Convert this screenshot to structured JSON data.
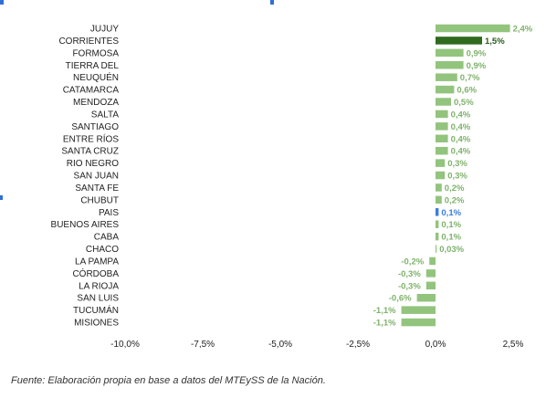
{
  "chart_data": {
    "type": "bar",
    "orientation": "horizontal",
    "categories": [
      "JUJUY",
      "CORRIENTES",
      "FORMOSA",
      "TIERRA DEL",
      "NEUQUÉN",
      "CATAMARCA",
      "MENDOZA",
      "SALTA",
      "SANTIAGO",
      "ENTRE RÍOS",
      "SANTA CRUZ",
      "RIO NEGRO",
      "SAN JUAN",
      "SANTA FE",
      "CHUBUT",
      "PAIS",
      "BUENOS AIRES",
      "CABA",
      "CHACO",
      "LA PAMPA",
      "CÓRDOBA",
      "LA RIOJA",
      "SAN LUIS",
      "TUCUMÁN",
      "MISIONES"
    ],
    "values": [
      2.4,
      1.5,
      0.9,
      0.9,
      0.7,
      0.6,
      0.5,
      0.4,
      0.4,
      0.4,
      0.4,
      0.3,
      0.3,
      0.2,
      0.2,
      0.1,
      0.1,
      0.1,
      0.03,
      -0.2,
      -0.3,
      -0.3,
      -0.6,
      -1.1,
      -1.1
    ],
    "value_labels": [
      "2,4%",
      "1,5%",
      "0,9%",
      "0,9%",
      "0,7%",
      "0,6%",
      "0,5%",
      "0,4%",
      "0,4%",
      "0,4%",
      "0,4%",
      "0,3%",
      "0,3%",
      "0,2%",
      "0,2%",
      "0,1%",
      "0,1%",
      "0,1%",
      "0,03%",
      "-0,2%",
      "-0,3%",
      "-0,3%",
      "-0,6%",
      "-1,1%",
      "-1,1%"
    ],
    "xlim": [
      -10,
      2.5
    ],
    "xticks": [
      -10,
      -7.5,
      -5,
      -2.5,
      0,
      2.5
    ],
    "xtick_labels": [
      "-10,0%",
      "-7,5%",
      "-5,0%",
      "-2,5%",
      "0,0%",
      "2,5%"
    ],
    "colors": {
      "default": "#92c47d",
      "highlight": "#2f6a1f",
      "country": "#3b7ddd",
      "label_default": "#7fb26b",
      "label_highlight": "#2a5a1c",
      "label_country": "#3b7ddd"
    },
    "highlight_category": "CORRIENTES",
    "country_category": "PAIS",
    "grid": false,
    "legend": "none",
    "title": "",
    "xlabel": "",
    "ylabel": ""
  },
  "source_note": "Fuente: Elaboración propia en base a datos del MTEySS de la Nación."
}
